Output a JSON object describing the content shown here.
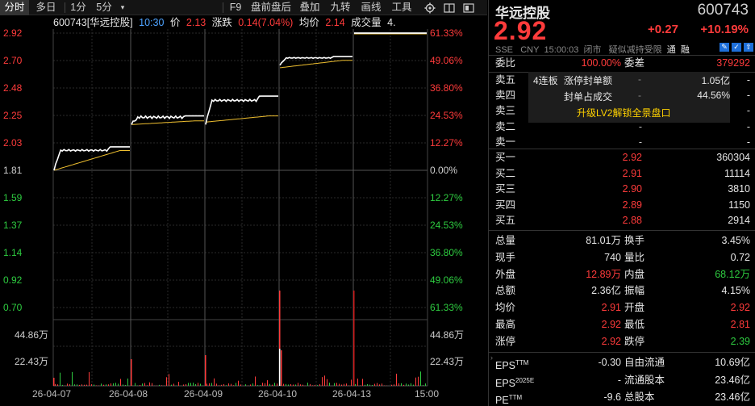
{
  "toolbar": {
    "items": [
      "分时",
      "多日",
      "1分",
      "5分",
      "F9",
      "盘前盘后",
      "叠加",
      "九转",
      "画线",
      "工具"
    ]
  },
  "infobar": {
    "code_name": "600743[华远控股]",
    "time": "10:30",
    "price_label": "价",
    "price": "2.13",
    "change_label": "涨跌",
    "change": "0.14(7.04%)",
    "avg_label": "均价",
    "avg": "2.14",
    "vol_label": "成交量",
    "vol": "4."
  },
  "chart": {
    "price_ticks": [
      "2.92",
      "2.70",
      "2.48",
      "2.25",
      "2.03",
      "1.81",
      "1.59",
      "1.37",
      "1.14",
      "0.92",
      "0.70"
    ],
    "pct_ticks": [
      "61.33%",
      "49.06%",
      "36.80%",
      "24.53%",
      "12.27%",
      "0.00%",
      "12.27%",
      "24.53%",
      "36.80%",
      "49.06%",
      "61.33%"
    ],
    "vol_ticks": [
      "44.86万",
      "22.43万"
    ],
    "vol_ticks_r": [
      "44.86万",
      "22.43万"
    ],
    "dates": [
      "26-04-07",
      "26-04-08",
      "26-04-09",
      "26-04-10",
      "26-04-13",
      "15:00"
    ]
  },
  "chart_data": {
    "type": "line",
    "x": [
      "26-04-07",
      "26-04-08",
      "26-04-09",
      "26-04-10",
      "26-04-13"
    ],
    "ylim": [
      0.7,
      2.92
    ],
    "prev_close": 1.81,
    "series": [
      {
        "name": "价",
        "values": [
          2.0,
          2.25,
          2.41,
          2.73,
          2.92
        ]
      },
      {
        "name": "均价",
        "values": [
          1.97,
          2.21,
          2.25,
          2.7,
          2.92
        ]
      }
    ]
  },
  "quote": {
    "name": "华远控股",
    "code": "600743",
    "price": "2.92",
    "change": "+0.27",
    "change_pct": "+10.19%",
    "exchange": "SSE",
    "currency": "CNY",
    "time": "15:00:03",
    "status": "闭市",
    "note": "疑似减持受限",
    "tag": "通",
    "tag2": "融"
  },
  "order": {
    "ratio_label": "委比",
    "ratio": "100.00%",
    "diff_label": "委差",
    "diff": "379292",
    "asks": [
      {
        "label": "卖五",
        "price": "-",
        "vol": "-"
      },
      {
        "label": "卖四",
        "price": "-",
        "vol": "-"
      },
      {
        "label": "卖三",
        "price": "-",
        "vol": "-"
      },
      {
        "label": "卖二",
        "price": "-",
        "vol": "-"
      },
      {
        "label": "卖一",
        "price": "-",
        "vol": "-"
      }
    ],
    "bids": [
      {
        "label": "买一",
        "price": "2.92",
        "vol": "360304"
      },
      {
        "label": "买二",
        "price": "2.91",
        "vol": "11114"
      },
      {
        "label": "买三",
        "price": "2.90",
        "vol": "3810"
      },
      {
        "label": "买四",
        "price": "2.89",
        "vol": "1150"
      },
      {
        "label": "买五",
        "price": "2.88",
        "vol": "2914"
      }
    ],
    "limit_box": {
      "streak": "4连板",
      "seal_label": "涨停封单额",
      "seal_dash": "-",
      "seal_value": "1.05亿",
      "ratio_label": "封单占成交",
      "ratio_dash": "-",
      "ratio_value": "44.56%",
      "upgrade": "升级LV2解锁全景盘口"
    }
  },
  "stats": [
    {
      "l1": "总量",
      "v1": "81.01万",
      "l2": "换手",
      "v2": "3.45%",
      "c1": "white",
      "c2": "white"
    },
    {
      "l1": "现手",
      "v1": "740",
      "l2": "量比",
      "v2": "0.72",
      "c1": "white",
      "c2": "white"
    },
    {
      "l1": "外盘",
      "v1": "12.89万",
      "l2": "内盘",
      "v2": "68.12万",
      "c1": "red",
      "c2": "green"
    },
    {
      "l1": "总额",
      "v1": "2.36亿",
      "l2": "振幅",
      "v2": "4.15%",
      "c1": "white",
      "c2": "white"
    },
    {
      "l1": "均价",
      "v1": "2.91",
      "l2": "开盘",
      "v2": "2.92",
      "c1": "red",
      "c2": "red"
    },
    {
      "l1": "最高",
      "v1": "2.92",
      "l2": "最低",
      "v2": "2.81",
      "c1": "red",
      "c2": "red"
    },
    {
      "l1": "涨停",
      "v1": "2.92",
      "l2": "跌停",
      "v2": "2.39",
      "c1": "red",
      "c2": "green"
    }
  ],
  "fin": [
    {
      "l1": "EPS",
      "s1": "TTM",
      "v1": "-0.30",
      "l2": "自由流通",
      "v2": "10.69亿"
    },
    {
      "l1": "EPS",
      "s1": "2025E",
      "v1": "-",
      "l2": "流通股本",
      "v2": "23.46亿"
    },
    {
      "l1": "PE",
      "s1": "TTM",
      "v1": "-9.6",
      "l2": "总股本",
      "v2": "23.46亿"
    }
  ]
}
